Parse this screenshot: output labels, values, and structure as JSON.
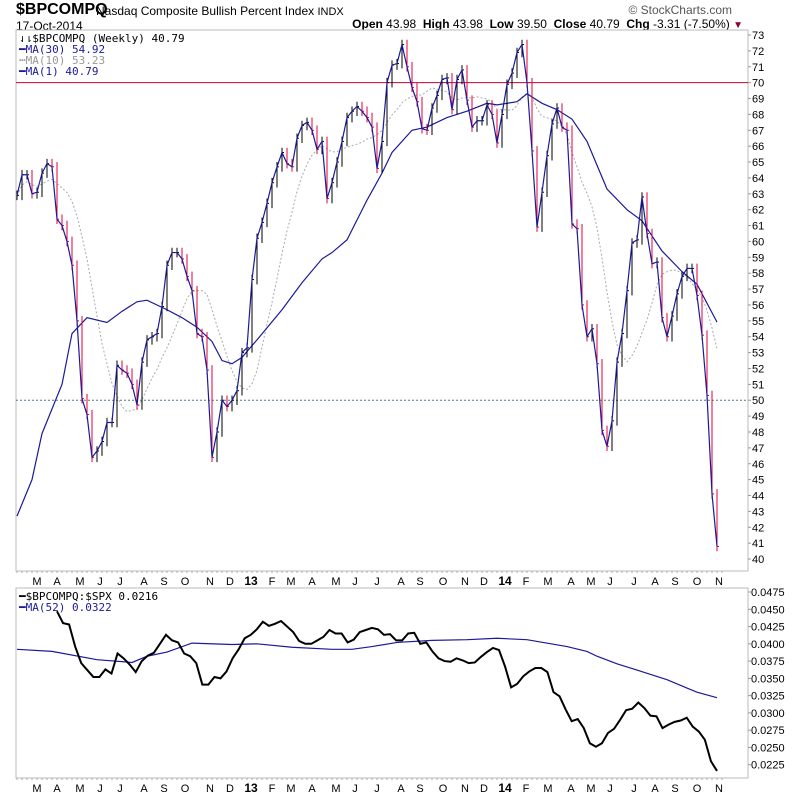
{
  "header": {
    "symbol": "$BPCOMPQ",
    "name": "Nasdaq Composite Bullish Percent Index",
    "exchange": "INDX",
    "date": "17-Oct-2014",
    "copyright": "© StockCharts.com",
    "open_label": "Open",
    "open": "43.98",
    "high_label": "High",
    "high": "43.98",
    "low_label": "Low",
    "low": "39.50",
    "close_label": "Close",
    "close": "40.79",
    "chg_label": "Chg",
    "chg": "-3.31 (-7.50%)"
  },
  "legend_main": {
    "price": "$BPCOMPQ (Weekly) 40.79",
    "ma30": "MA(30) 54.92",
    "ma10": "MA(10) 53.23",
    "ma1": "MA(1) 40.79"
  },
  "legend_lower": {
    "ratio": "$BPCOMPQ:$SPX 0.0216",
    "ma52": "MA(52) 0.0322"
  },
  "colors": {
    "up": "#000000",
    "down": "#e0003c",
    "ma": "#1a1a9a",
    "ma10": "#aaaaaa",
    "ref70": "#cc0033",
    "ref50": "#557788"
  },
  "chart_data": [
    {
      "type": "line",
      "title": "Nasdaq Composite Bullish Percent Index (Weekly)",
      "xlabel": "",
      "ylabel": "",
      "ylim": [
        39.5,
        73.3
      ],
      "yticks": [
        40,
        41,
        42,
        43,
        44,
        45,
        46,
        47,
        48,
        49,
        50,
        51,
        52,
        53,
        54,
        55,
        56,
        57,
        58,
        59,
        60,
        61,
        62,
        63,
        64,
        65,
        66,
        67,
        68,
        69,
        70,
        71,
        72,
        73
      ],
      "reference_lines": [
        70,
        50
      ],
      "x_unit": "week index",
      "xticks": [
        [
          "M",
          4
        ],
        [
          "A",
          8
        ],
        [
          "M",
          12.6
        ],
        [
          "J",
          16.6
        ],
        [
          "J",
          20.6
        ],
        [
          "A",
          25.4
        ],
        [
          "S",
          29.4
        ],
        [
          "O",
          33.6
        ],
        [
          "N",
          38.6
        ],
        [
          "D",
          42.6
        ],
        [
          "13",
          46.8
        ],
        [
          "F",
          51
        ],
        [
          "M",
          54.8
        ],
        [
          "A",
          59
        ],
        [
          "M",
          63.8
        ],
        [
          "J",
          67.6
        ],
        [
          "J",
          72
        ],
        [
          "A",
          76.8
        ],
        [
          "S",
          80.6
        ],
        [
          "O",
          85.2
        ],
        [
          "N",
          89.6
        ],
        [
          "D",
          93.4
        ],
        [
          "14",
          97.6
        ],
        [
          "F",
          101.8
        ],
        [
          "M",
          106.2
        ],
        [
          "A",
          110.8
        ],
        [
          "M",
          114.8
        ],
        [
          "J",
          118.6
        ],
        [
          "J",
          123.4
        ],
        [
          "A",
          127.6
        ],
        [
          "S",
          131.6
        ],
        [
          "O",
          136
        ],
        [
          "N",
          140.4
        ]
      ],
      "close": [
        62.9,
        64.2,
        64.2,
        63.0,
        63.1,
        64.3,
        64.9,
        64.7,
        61.4,
        61.0,
        60.0,
        58.5,
        55.0,
        50.1,
        49.1,
        46.4,
        46.8,
        47.4,
        48.6,
        48.6,
        52.2,
        51.9,
        51.7,
        51.0,
        49.7,
        52.4,
        53.8,
        54.0,
        54.2,
        55.9,
        58.5,
        59.3,
        59.3,
        58.9,
        57.8,
        56.9,
        54.2,
        54.0,
        51.9,
        46.4,
        48.0,
        50.0,
        49.6,
        50.0,
        50.6,
        53.0,
        53.3,
        57.6,
        60.2,
        61.2,
        62.4,
        63.7,
        64.7,
        65.6,
        64.9,
        64.7,
        66.5,
        67.3,
        67.5,
        67.0,
        65.8,
        66.3,
        62.7,
        63.7,
        65.0,
        66.3,
        67.8,
        68.2,
        68.5,
        68.2,
        67.8,
        67.2,
        64.6,
        66.3,
        70.0,
        71.1,
        71.2,
        72.4,
        71.0,
        69.7,
        68.8,
        67.1,
        67.0,
        68.4,
        69.2,
        70.2,
        70.3,
        68.3,
        70.2,
        70.8,
        68.9,
        67.2,
        67.6,
        67.6,
        68.6,
        68.0,
        66.2,
        68.0,
        69.9,
        70.6,
        71.9,
        72.4,
        70.0,
        65.7,
        60.9,
        63.1,
        65.4,
        67.4,
        68.4,
        67.2,
        67.0,
        61.1,
        60.8,
        56.0,
        54.0,
        54.5,
        52.3,
        48.1,
        47.1,
        48.7,
        52.4,
        54.2,
        56.9,
        59.9,
        60.1,
        62.8,
        60.5,
        58.6,
        58.7,
        55.2,
        54.0,
        55.3,
        56.7,
        57.8,
        58.3,
        58.3,
        56.6,
        54.1,
        50.3,
        44.1,
        40.79
      ],
      "ma30": [
        [
          0,
          42.7
        ],
        [
          3,
          45.0
        ],
        [
          5,
          47.9
        ],
        [
          9,
          51.0
        ],
        [
          11,
          54.2
        ],
        [
          14,
          55.2
        ],
        [
          18,
          54.9
        ],
        [
          21,
          55.6
        ],
        [
          24,
          56.2
        ],
        [
          26,
          56.3
        ],
        [
          30,
          55.7
        ],
        [
          33,
          55.2
        ],
        [
          36,
          54.6
        ],
        [
          39,
          53.7
        ],
        [
          41,
          52.5
        ],
        [
          43,
          52.3
        ],
        [
          45,
          52.7
        ],
        [
          48,
          53.8
        ],
        [
          53,
          55.7
        ],
        [
          57,
          57.4
        ],
        [
          61,
          58.9
        ],
        [
          63,
          59.3
        ],
        [
          66,
          60.1
        ],
        [
          70,
          62.6
        ],
        [
          73,
          64.3
        ],
        [
          75,
          65.6
        ],
        [
          79,
          67.0
        ],
        [
          82,
          67.2
        ],
        [
          86,
          67.8
        ],
        [
          90,
          68.2
        ],
        [
          94,
          68.7
        ],
        [
          96,
          68.6
        ],
        [
          100,
          68.8
        ],
        [
          102,
          69.3
        ],
        [
          105,
          68.7
        ],
        [
          108,
          68.3
        ],
        [
          111,
          67.7
        ],
        [
          114,
          66.3
        ],
        [
          118,
          63.3
        ],
        [
          122,
          62.0
        ],
        [
          125,
          61.3
        ],
        [
          129,
          59.4
        ],
        [
          133,
          58.1
        ],
        [
          136,
          57.3
        ],
        [
          140,
          54.92
        ]
      ]
    },
    {
      "type": "line",
      "title": "$BPCOMPQ:$SPX",
      "ylim": [
        0.0213,
        0.0482
      ],
      "yticks": [
        "0.0475",
        "0.0450",
        "0.0425",
        "0.0400",
        "0.0375",
        "0.0350",
        "0.0325",
        "0.0300",
        "0.0275",
        "0.0250",
        "0.0225"
      ],
      "ratio_start_week": 8,
      "ratio": [
        0.0447,
        0.043,
        0.0428,
        0.0396,
        0.0372,
        0.0362,
        0.0352,
        0.0352,
        0.0363,
        0.0357,
        0.0386,
        0.0379,
        0.037,
        0.0359,
        0.0375,
        0.0383,
        0.0387,
        0.04,
        0.0413,
        0.0405,
        0.0402,
        0.0386,
        0.0382,
        0.0372,
        0.0341,
        0.0341,
        0.0352,
        0.035,
        0.036,
        0.0379,
        0.0392,
        0.0408,
        0.0413,
        0.0421,
        0.0432,
        0.0426,
        0.0429,
        0.0433,
        0.0425,
        0.0417,
        0.0404,
        0.04,
        0.04,
        0.0405,
        0.041,
        0.042,
        0.0415,
        0.0415,
        0.0402,
        0.0406,
        0.0417,
        0.042,
        0.0423,
        0.0421,
        0.0413,
        0.0414,
        0.0405,
        0.0405,
        0.0415,
        0.0416,
        0.04,
        0.0402,
        0.0389,
        0.0379,
        0.0375,
        0.0374,
        0.0379,
        0.0376,
        0.0372,
        0.0373,
        0.0381,
        0.0388,
        0.0394,
        0.0391,
        0.0367,
        0.0337,
        0.0342,
        0.0353,
        0.036,
        0.0365,
        0.0365,
        0.0359,
        0.033,
        0.0324,
        0.0305,
        0.0288,
        0.0291,
        0.0278,
        0.0256,
        0.0251,
        0.0256,
        0.0271,
        0.0277,
        0.029,
        0.0304,
        0.0306,
        0.0315,
        0.0307,
        0.0296,
        0.0295,
        0.0278,
        0.0283,
        0.0287,
        0.0289,
        0.0293,
        0.028,
        0.0273,
        0.0261,
        0.023,
        0.0216
      ],
      "ma52": [
        [
          0,
          0.0392
        ],
        [
          7,
          0.0389
        ],
        [
          16,
          0.0377
        ],
        [
          23,
          0.0373
        ],
        [
          26,
          0.0382
        ],
        [
          30,
          0.0388
        ],
        [
          35,
          0.0401
        ],
        [
          43,
          0.0399
        ],
        [
          48,
          0.04
        ],
        [
          55,
          0.0395
        ],
        [
          63,
          0.0392
        ],
        [
          67,
          0.0392
        ],
        [
          71,
          0.0396
        ],
        [
          76,
          0.0402
        ],
        [
          83,
          0.0405
        ],
        [
          90,
          0.0406
        ],
        [
          96,
          0.0408
        ],
        [
          102,
          0.0406
        ],
        [
          110,
          0.0396
        ],
        [
          114,
          0.0389
        ],
        [
          116,
          0.0382
        ],
        [
          120,
          0.0371
        ],
        [
          124,
          0.0362
        ],
        [
          130,
          0.0348
        ],
        [
          134,
          0.0336
        ],
        [
          136,
          0.033
        ],
        [
          140,
          0.0322
        ]
      ]
    }
  ]
}
